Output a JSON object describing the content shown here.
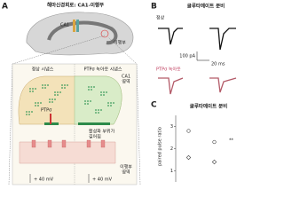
{
  "panels": {
    "a": {
      "label": "A",
      "title": "해마신경회로: CA1-이행부",
      "ca1": "CA1",
      "subiculum": "이행부",
      "normal_synapse": "정상 시냅스",
      "ko_synapse": "PTPσ 녹아웃 시냅스",
      "ca1_region": [
        "CA1",
        "영역"
      ],
      "ptp": "PTPσ",
      "active_zone": [
        "활성화 부위가",
        "길어짐"
      ],
      "subiculum_region": [
        "이행부",
        "영역"
      ],
      "voltage": [
        "+ 40 mV",
        "+ 40 mV"
      ]
    },
    "b": {
      "label": "B",
      "title": "글루타메이트 분비",
      "normal": "정상",
      "knockout": "PTPσ 녹아웃",
      "scale_current": "100 pA",
      "scale_time": "20 ms"
    },
    "c": {
      "label": "C",
      "title": "글루타메이트 분비",
      "y_label": "paired pulse ratio",
      "significance": "**"
    }
  },
  "chart_data": {
    "type": "scatter",
    "categories": [
      null,
      null
    ],
    "ylim": [
      0.5,
      3.5
    ],
    "yticks": [
      1,
      2,
      3
    ],
    "series": [
      {
        "color": "#555555",
        "values": [
          2.8,
          2.3
        ]
      },
      {
        "color": "#555555",
        "values": [
          1.6,
          1.4
        ]
      }
    ]
  }
}
